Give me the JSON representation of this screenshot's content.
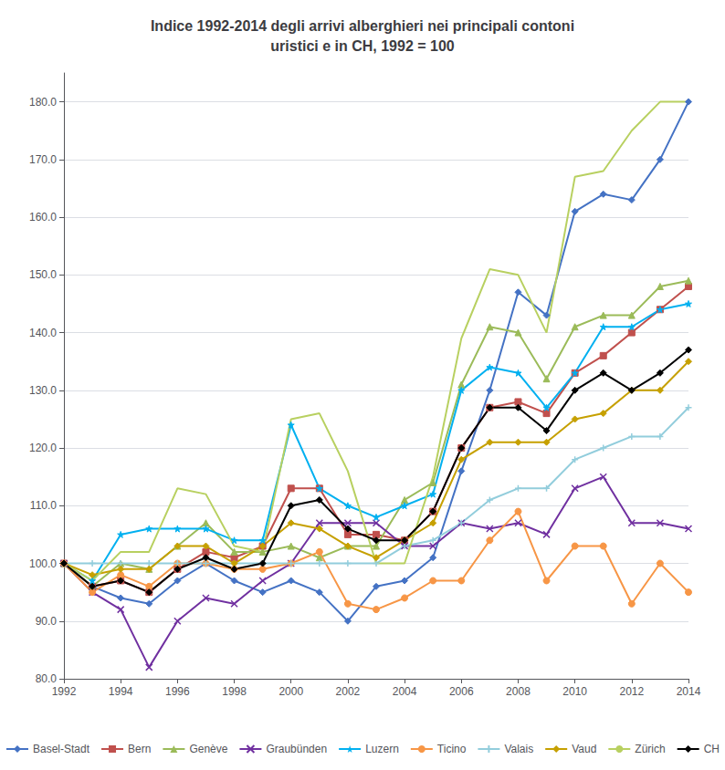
{
  "chart_data": {
    "type": "line",
    "title": "Indice 1992-2014 degli arrivi alberghieri nei principali contoni\nuristici e in CH, 1992 = 100",
    "x": [
      1992,
      1993,
      1994,
      1995,
      1996,
      1997,
      1998,
      1999,
      2000,
      2001,
      2002,
      2003,
      2004,
      2005,
      2006,
      2007,
      2008,
      2009,
      2010,
      2011,
      2012,
      2013,
      2014
    ],
    "xlim": [
      1992,
      2014
    ],
    "xticks": [
      1992,
      1994,
      1996,
      1998,
      2000,
      2002,
      2004,
      2006,
      2008,
      2010,
      2012,
      2014
    ],
    "ylim": [
      80,
      185
    ],
    "yticks": [
      {
        "value": 80,
        "label": "80.0"
      },
      {
        "value": 90,
        "label": "90.0"
      },
      {
        "value": 100,
        "label": "100.0"
      },
      {
        "value": 110,
        "label": "110.0"
      },
      {
        "value": 120,
        "label": "120.0"
      },
      {
        "value": 130,
        "label": "130.0"
      },
      {
        "value": 140,
        "label": "140.0"
      },
      {
        "value": 150,
        "label": "150.0"
      },
      {
        "value": 160,
        "label": "160.0"
      },
      {
        "value": 170,
        "label": "170.0"
      },
      {
        "value": 180,
        "label": "180.0"
      }
    ],
    "grid": true,
    "legend": "bottom",
    "series": [
      {
        "name": "Basel-Stadt",
        "color": "#4472C4",
        "marker": "diamond",
        "values": [
          100,
          96,
          94,
          93,
          97,
          100,
          97,
          95,
          97,
          95,
          90,
          96,
          97,
          101,
          116,
          130,
          147,
          143,
          161,
          164,
          163,
          170,
          180
        ]
      },
      {
        "name": "Bern",
        "color": "#C0504D",
        "marker": "square",
        "values": [
          100,
          96,
          97,
          95,
          99,
          102,
          101,
          103,
          113,
          113,
          105,
          105,
          104,
          109,
          120,
          127,
          128,
          126,
          133,
          136,
          140,
          144,
          148
        ]
      },
      {
        "name": "Genève",
        "color": "#9BBB59",
        "marker": "triangle",
        "values": [
          100,
          96,
          100,
          99,
          103,
          107,
          102,
          102,
          103,
          101,
          103,
          103,
          111,
          114,
          131,
          141,
          140,
          132,
          141,
          143,
          143,
          148,
          149
        ]
      },
      {
        "name": "Graubünden",
        "color": "#7030A0",
        "marker": "x",
        "values": [
          100,
          95,
          92,
          82,
          90,
          94,
          93,
          97,
          100,
          107,
          107,
          107,
          103,
          103,
          107,
          106,
          107,
          105,
          113,
          115,
          107,
          107,
          106
        ]
      },
      {
        "name": "Luzern",
        "color": "#00B0F0",
        "marker": "star",
        "values": [
          100,
          97,
          105,
          106,
          106,
          106,
          104,
          104,
          124,
          113,
          110,
          108,
          110,
          112,
          130,
          134,
          133,
          127,
          133,
          141,
          141,
          144,
          145
        ]
      },
      {
        "name": "Ticino",
        "color": "#F79646",
        "marker": "circle",
        "values": [
          100,
          95,
          98,
          96,
          100,
          100,
          99,
          99,
          100,
          102,
          93,
          92,
          94,
          97,
          97,
          104,
          109,
          97,
          103,
          103,
          93,
          100,
          95
        ]
      },
      {
        "name": "Valais",
        "color": "#92CDDC",
        "marker": "plus",
        "values": [
          100,
          100,
          100,
          100,
          100,
          100,
          100,
          100,
          100,
          100,
          100,
          100,
          103,
          104,
          107,
          111,
          113,
          113,
          118,
          120,
          122,
          122,
          127
        ]
      },
      {
        "name": "Vaud",
        "color": "#C6A000",
        "marker": "diamond",
        "values": [
          100,
          98,
          99,
          99,
          103,
          103,
          100,
          103,
          107,
          106,
          103,
          101,
          104,
          107,
          118,
          121,
          121,
          121,
          125,
          126,
          130,
          130,
          135
        ]
      },
      {
        "name": "Zürich",
        "color": "#B8D060",
        "marker": "none",
        "values": [
          100,
          97,
          102,
          102,
          113,
          112,
          103,
          102,
          125,
          126,
          116,
          100,
          100,
          115,
          139,
          151,
          150,
          140,
          167,
          168,
          175,
          180,
          180
        ]
      },
      {
        "name": "CH",
        "color": "#000000",
        "marker": "diamond",
        "values": [
          100,
          96,
          97,
          95,
          99,
          101,
          99,
          100,
          110,
          111,
          106,
          104,
          104,
          109,
          120,
          127,
          127,
          123,
          130,
          133,
          130,
          133,
          137
        ]
      }
    ]
  }
}
